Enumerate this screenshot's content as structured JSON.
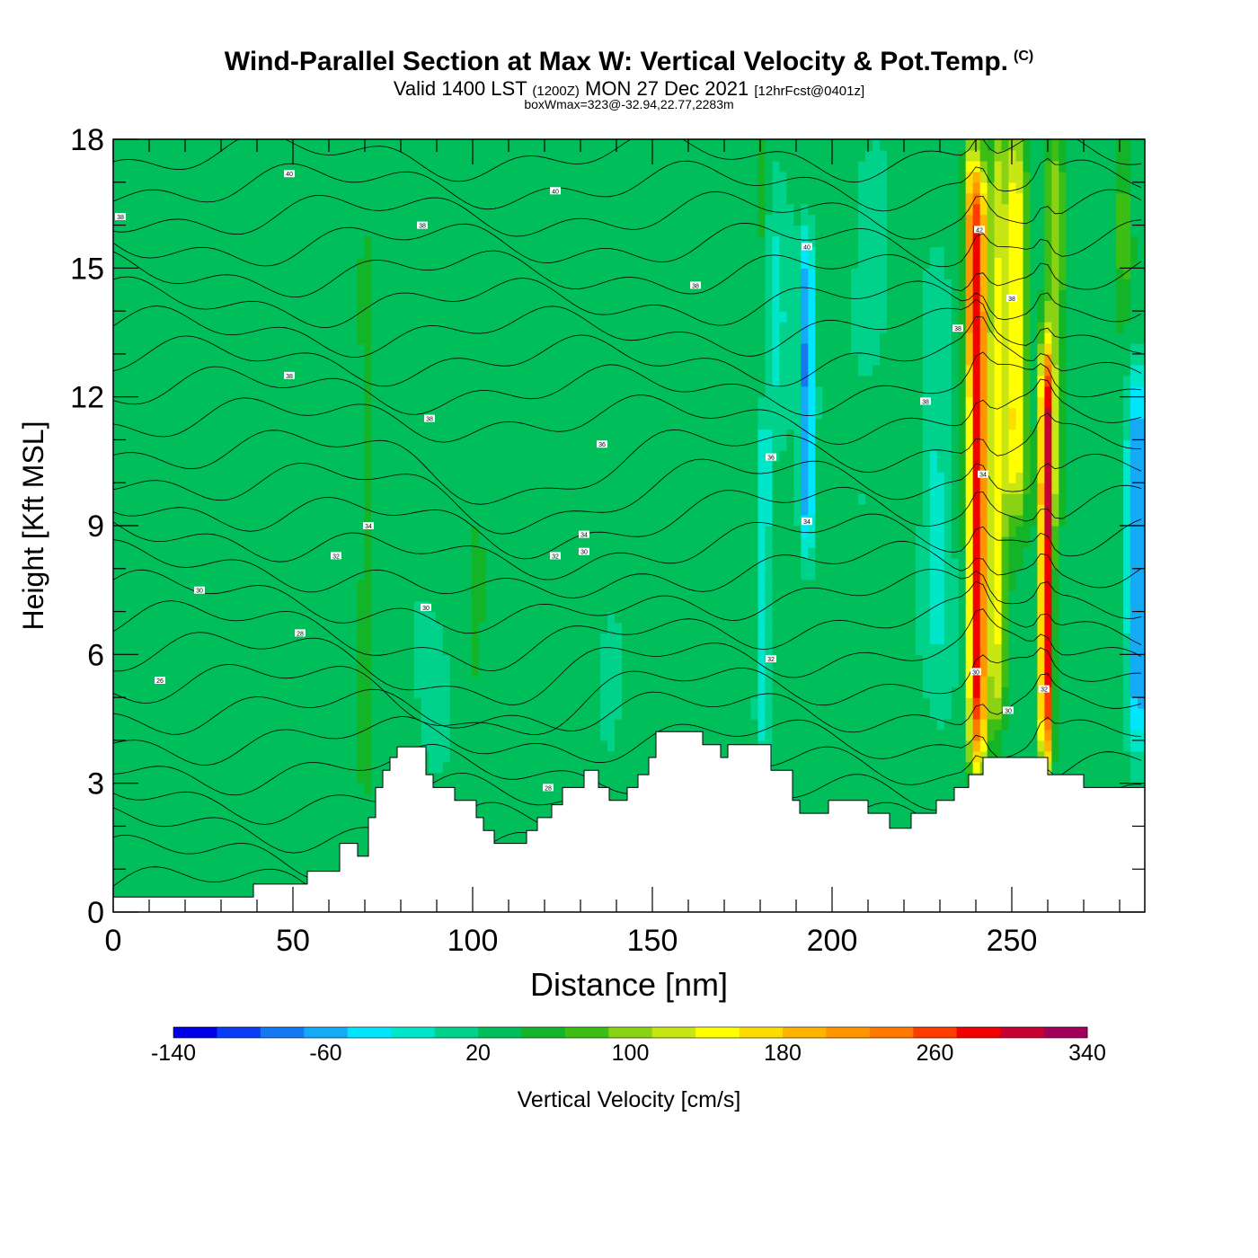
{
  "title": "Wind-Parallel Section at Max W: Vertical Velocity & Pot.Temp.",
  "copyright_mark": "(C)",
  "subtitle_main": "Valid 1400 LST",
  "subtitle_utc": "(1200Z)",
  "subtitle_date": "MON 27 Dec 2021",
  "subtitle_fcst": "[12hrFcst@0401z]",
  "subtitle_box": "boxWmax=323@-32.94,22.77,2283m",
  "chart_data": {
    "type": "heatmap",
    "xlabel": "Distance [nm]",
    "ylabel": "Height [Kft MSL]",
    "xlim": [
      0,
      287
    ],
    "ylim": [
      0,
      18
    ],
    "x_ticks": [
      0,
      50,
      100,
      150,
      200,
      250
    ],
    "y_ticks": [
      0,
      3,
      6,
      9,
      12,
      15,
      18
    ],
    "colorbar": {
      "label": "Vertical Velocity [cm/s]",
      "min": -140,
      "max": 340,
      "step": 20,
      "tick_labels": [
        -140,
        -60,
        20,
        100,
        180,
        260,
        340
      ],
      "colors": [
        "#0000e8",
        "#0a3cf5",
        "#1478f0",
        "#14aaf5",
        "#00e6ff",
        "#00e6c8",
        "#00d28c",
        "#00be5a",
        "#14b428",
        "#3cbe14",
        "#8cd214",
        "#c8e614",
        "#ffff00",
        "#ffdc00",
        "#ffb400",
        "#ff9600",
        "#ff7800",
        "#ff3c00",
        "#f00000",
        "#c80032",
        "#a0005a"
      ]
    },
    "terrain_kft": [
      [
        0,
        0.35
      ],
      [
        5,
        0.35
      ],
      [
        10,
        0.35
      ],
      [
        15,
        0.35
      ],
      [
        20,
        0.35
      ],
      [
        25,
        0.35
      ],
      [
        30,
        0.35
      ],
      [
        35,
        0.35
      ],
      [
        39,
        0.35
      ],
      [
        39,
        0.65
      ],
      [
        45,
        0.65
      ],
      [
        50,
        0.65
      ],
      [
        54,
        0.65
      ],
      [
        54,
        0.95
      ],
      [
        60,
        0.95
      ],
      [
        63,
        0.95
      ],
      [
        63,
        1.6
      ],
      [
        68,
        1.6
      ],
      [
        68,
        1.3
      ],
      [
        71,
        1.3
      ],
      [
        71,
        2.2
      ],
      [
        73,
        2.2
      ],
      [
        73,
        2.9
      ],
      [
        75,
        2.9
      ],
      [
        75,
        3.3
      ],
      [
        77,
        3.3
      ],
      [
        77,
        3.6
      ],
      [
        79,
        3.6
      ],
      [
        79,
        3.85
      ],
      [
        87,
        3.85
      ],
      [
        87,
        3.2
      ],
      [
        89,
        3.2
      ],
      [
        89,
        2.9
      ],
      [
        95,
        2.9
      ],
      [
        95,
        2.6
      ],
      [
        101,
        2.6
      ],
      [
        101,
        2.2
      ],
      [
        103,
        2.2
      ],
      [
        103,
        1.9
      ],
      [
        106,
        1.9
      ],
      [
        106,
        1.6
      ],
      [
        115,
        1.6
      ],
      [
        115,
        1.9
      ],
      [
        118,
        1.9
      ],
      [
        118,
        2.2
      ],
      [
        122,
        2.2
      ],
      [
        122,
        2.5
      ],
      [
        125,
        2.5
      ],
      [
        125,
        2.9
      ],
      [
        131,
        2.9
      ],
      [
        131,
        3.3
      ],
      [
        135,
        3.3
      ],
      [
        135,
        2.9
      ],
      [
        138,
        2.9
      ],
      [
        138,
        2.6
      ],
      [
        143,
        2.6
      ],
      [
        143,
        2.9
      ],
      [
        146,
        2.9
      ],
      [
        146,
        3.2
      ],
      [
        149,
        3.2
      ],
      [
        149,
        3.6
      ],
      [
        151,
        3.6
      ],
      [
        151,
        4.2
      ],
      [
        164,
        4.2
      ],
      [
        164,
        3.9
      ],
      [
        169,
        3.9
      ],
      [
        169,
        3.6
      ],
      [
        171,
        3.6
      ],
      [
        171,
        3.9
      ],
      [
        183,
        3.9
      ],
      [
        183,
        3.3
      ],
      [
        189,
        3.3
      ],
      [
        189,
        2.6
      ],
      [
        191,
        2.6
      ],
      [
        191,
        2.3
      ],
      [
        199,
        2.3
      ],
      [
        199,
        2.6
      ],
      [
        210,
        2.6
      ],
      [
        210,
        2.3
      ],
      [
        216,
        2.3
      ],
      [
        216,
        1.95
      ],
      [
        222,
        1.95
      ],
      [
        222,
        2.3
      ],
      [
        229,
        2.3
      ],
      [
        229,
        2.6
      ],
      [
        234,
        2.6
      ],
      [
        234,
        2.9
      ],
      [
        238,
        2.9
      ],
      [
        238,
        3.2
      ],
      [
        242,
        3.2
      ],
      [
        242,
        3.6
      ],
      [
        260,
        3.6
      ],
      [
        260,
        3.2
      ],
      [
        270,
        3.2
      ],
      [
        270,
        2.9
      ],
      [
        287,
        2.9
      ]
    ],
    "contour_labels": [
      {
        "text": "40",
        "x": 49,
        "y": 17.2
      },
      {
        "text": "40",
        "x": 123,
        "y": 16.8
      },
      {
        "text": "38",
        "x": 2,
        "y": 16.2
      },
      {
        "text": "38",
        "x": 86,
        "y": 16.0
      },
      {
        "text": "40",
        "x": 193,
        "y": 15.5
      },
      {
        "text": "42",
        "x": 241,
        "y": 15.9
      },
      {
        "text": "38",
        "x": 162,
        "y": 14.6
      },
      {
        "text": "38",
        "x": 250,
        "y": 14.3
      },
      {
        "text": "38",
        "x": 235,
        "y": 13.6
      },
      {
        "text": "38",
        "x": 49,
        "y": 12.5
      },
      {
        "text": "38",
        "x": 226,
        "y": 11.9
      },
      {
        "text": "38",
        "x": 88,
        "y": 11.5
      },
      {
        "text": "36",
        "x": 136,
        "y": 10.9
      },
      {
        "text": "36",
        "x": 183,
        "y": 10.6
      },
      {
        "text": "34",
        "x": 242,
        "y": 10.2
      },
      {
        "text": "34",
        "x": 71,
        "y": 9.0
      },
      {
        "text": "34",
        "x": 193,
        "y": 9.1
      },
      {
        "text": "34",
        "x": 131,
        "y": 8.8
      },
      {
        "text": "32",
        "x": 62,
        "y": 8.3
      },
      {
        "text": "32",
        "x": 123,
        "y": 8.3
      },
      {
        "text": "30",
        "x": 131,
        "y": 8.4
      },
      {
        "text": "30",
        "x": 24,
        "y": 7.5
      },
      {
        "text": "30",
        "x": 87,
        "y": 7.1
      },
      {
        "text": "28",
        "x": 52,
        "y": 6.5
      },
      {
        "text": "32",
        "x": 183,
        "y": 5.9
      },
      {
        "text": "26",
        "x": 13,
        "y": 5.4
      },
      {
        "text": "30",
        "x": 240,
        "y": 5.6
      },
      {
        "text": "32",
        "x": 259,
        "y": 5.2
      },
      {
        "text": "30",
        "x": 249,
        "y": 4.7
      },
      {
        "text": "28",
        "x": 121,
        "y": 2.9
      }
    ]
  }
}
